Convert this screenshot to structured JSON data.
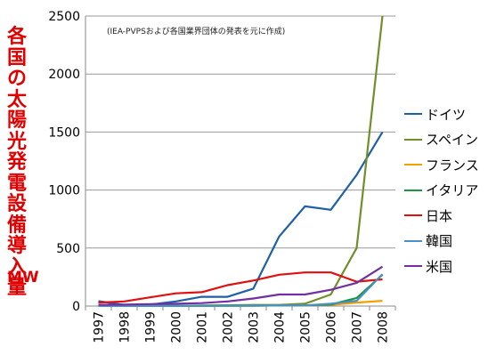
{
  "chart_data": {
    "type": "line",
    "title_vertical": "各国の太陽光発電設備導入量",
    "unit_label": "MW",
    "note": "(IEA-PVPSおよび各国業界団体の発表を元に作成)",
    "categories": [
      "1997",
      "1998",
      "1999",
      "2000",
      "2001",
      "2002",
      "2003",
      "2004",
      "2005",
      "2006",
      "2007",
      "2008"
    ],
    "ylim": [
      0,
      2500
    ],
    "yticks": [
      0,
      500,
      1000,
      1500,
      2000,
      2500
    ],
    "grid": "horizontal",
    "legend_position": "right",
    "series": [
      {
        "name": "ドイツ",
        "color": "#1f5fa8",
        "values": [
          42,
          10,
          12,
          40,
          80,
          80,
          150,
          600,
          860,
          830,
          1130,
          1500
        ]
      },
      {
        "name": "スペイン",
        "color": "#6f8f2a",
        "values": [
          1,
          1,
          2,
          2,
          5,
          7,
          10,
          10,
          20,
          100,
          500,
          2500
        ]
      },
      {
        "name": "フランス",
        "color": "#f5a000",
        "values": [
          1,
          1,
          1,
          1,
          2,
          3,
          3,
          5,
          7,
          10,
          30,
          45
        ]
      },
      {
        "name": "イタリア",
        "color": "#1a9641",
        "values": [
          1,
          1,
          1,
          1,
          2,
          3,
          4,
          5,
          6,
          12,
          70,
          270
        ]
      },
      {
        "name": "日本",
        "color": "#e01010",
        "values": [
          30,
          40,
          75,
          110,
          120,
          180,
          220,
          270,
          290,
          290,
          210,
          230
        ]
      },
      {
        "name": "韓国",
        "color": "#4a8fc8",
        "values": [
          1,
          1,
          1,
          1,
          1,
          2,
          3,
          5,
          5,
          20,
          45,
          275
        ]
      },
      {
        "name": "米国",
        "color": "#7030a0",
        "values": [
          10,
          12,
          17,
          20,
          25,
          40,
          65,
          100,
          100,
          140,
          200,
          340
        ]
      }
    ]
  }
}
